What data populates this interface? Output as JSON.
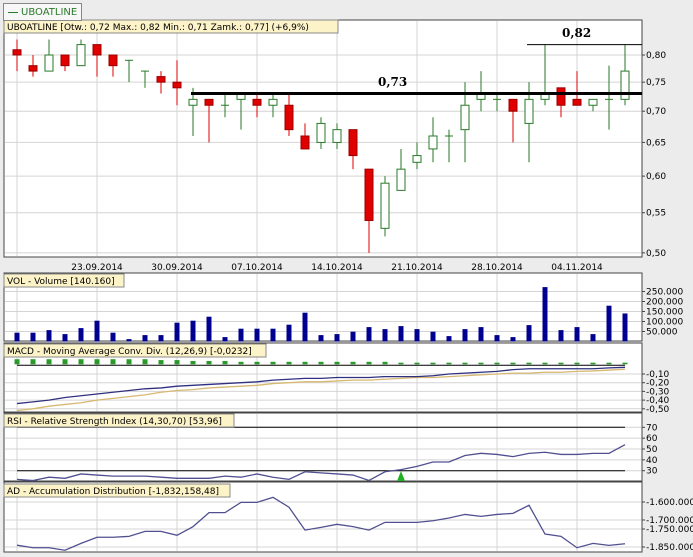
{
  "tab": {
    "label": "UBOATLINE",
    "icon": "line-series-icon",
    "color": "#2a7a2a"
  },
  "colors": {
    "up": "#2a7a2a",
    "down": "#e00000",
    "volume": "#000090",
    "macd": "#303080",
    "signal": "#d8b870",
    "histogram": "#2a9a2a",
    "rsi": "#505090",
    "ad": "#505090",
    "label_bg": "#fdf3c8"
  },
  "chart_data": [
    {
      "type": "candlestick",
      "title": "UBOATLINE [Otw.: 0,72  Max.: 0,82  Min.: 0,71  Zamk.: 0,77] (+6,9%)",
      "y_scale": "log",
      "ylim": [
        0.5,
        0.84
      ],
      "yticks": [
        "0,80",
        "0,75",
        "0,70",
        "0,65",
        "0,60",
        "0,55",
        "0,50"
      ],
      "ytick_values": [
        0.8,
        0.75,
        0.7,
        0.65,
        0.6,
        0.55,
        0.5
      ],
      "xticks": [
        {
          "label": "23.09.2014",
          "index": 5
        },
        {
          "label": "30.09.2014",
          "index": 10
        },
        {
          "label": "07.10.2014",
          "index": 15
        },
        {
          "label": "14.10.2014",
          "index": 20
        },
        {
          "label": "21.10.2014",
          "index": 25
        },
        {
          "label": "28.10.2014",
          "index": 30
        },
        {
          "label": "04.11.2014",
          "index": 35
        }
      ],
      "grid": true,
      "ohlc": [
        [
          0.81,
          0.83,
          0.77,
          0.8
        ],
        [
          0.78,
          0.8,
          0.76,
          0.77
        ],
        [
          0.77,
          0.83,
          0.77,
          0.8
        ],
        [
          0.8,
          0.8,
          0.77,
          0.78
        ],
        [
          0.78,
          0.83,
          0.78,
          0.82
        ],
        [
          0.82,
          0.82,
          0.76,
          0.8
        ],
        [
          0.8,
          0.8,
          0.76,
          0.78
        ],
        [
          0.79,
          0.79,
          0.75,
          0.79
        ],
        [
          0.77,
          0.77,
          0.74,
          0.77
        ],
        [
          0.76,
          0.77,
          0.73,
          0.75
        ],
        [
          0.75,
          0.79,
          0.71,
          0.74
        ],
        [
          0.71,
          0.74,
          0.66,
          0.72
        ],
        [
          0.72,
          0.72,
          0.65,
          0.71
        ],
        [
          0.71,
          0.73,
          0.69,
          0.71
        ],
        [
          0.72,
          0.73,
          0.67,
          0.73
        ],
        [
          0.72,
          0.73,
          0.69,
          0.71
        ],
        [
          0.71,
          0.73,
          0.69,
          0.72
        ],
        [
          0.71,
          0.73,
          0.66,
          0.67
        ],
        [
          0.66,
          0.68,
          0.64,
          0.64
        ],
        [
          0.65,
          0.69,
          0.64,
          0.68
        ],
        [
          0.65,
          0.68,
          0.64,
          0.67
        ],
        [
          0.67,
          0.67,
          0.61,
          0.63
        ],
        [
          0.61,
          0.61,
          0.5,
          0.54
        ],
        [
          0.53,
          0.6,
          0.52,
          0.59
        ],
        [
          0.58,
          0.64,
          0.58,
          0.61
        ],
        [
          0.62,
          0.65,
          0.61,
          0.63
        ],
        [
          0.64,
          0.69,
          0.62,
          0.66
        ],
        [
          0.66,
          0.67,
          0.62,
          0.66
        ],
        [
          0.67,
          0.75,
          0.62,
          0.71
        ],
        [
          0.72,
          0.77,
          0.7,
          0.73
        ],
        [
          0.72,
          0.73,
          0.7,
          0.72
        ],
        [
          0.72,
          0.72,
          0.65,
          0.7
        ],
        [
          0.68,
          0.75,
          0.62,
          0.72
        ],
        [
          0.72,
          0.82,
          0.71,
          0.73
        ],
        [
          0.74,
          0.74,
          0.69,
          0.71
        ],
        [
          0.72,
          0.77,
          0.71,
          0.71
        ],
        [
          0.71,
          0.72,
          0.7,
          0.72
        ],
        [
          0.72,
          0.78,
          0.67,
          0.72
        ],
        [
          0.72,
          0.82,
          0.71,
          0.77
        ]
      ],
      "annotations": [
        {
          "label": "0,73",
          "value": 0.73,
          "from_index": 11,
          "style": "thick"
        },
        {
          "label": "0,82",
          "value": 0.82,
          "from_index": 32,
          "style": "thin"
        }
      ]
    },
    {
      "type": "bar",
      "title": "VOL - Volume [140.160]",
      "ylim": [
        0,
        280000
      ],
      "yticks": [
        "250.000",
        "200.000",
        "150.000",
        "100.000",
        "50.000"
      ],
      "ytick_values": [
        250000,
        200000,
        150000,
        100000,
        50000
      ],
      "values": [
        44000,
        44000,
        57000,
        37000,
        67000,
        104000,
        44000,
        12000,
        32000,
        32000,
        94000,
        104000,
        124000,
        22000,
        64000,
        64000,
        64000,
        84000,
        144000,
        32000,
        37000,
        49000,
        72000,
        62000,
        77000,
        62000,
        49000,
        27000,
        62000,
        72000,
        32000,
        22000,
        82000,
        272000,
        57000,
        72000,
        37000,
        179000,
        140160
      ]
    },
    {
      "type": "line",
      "title": "MACD - Moving Average Conv. Div. (12,26,9) [-0,0232]",
      "yticks": [
        "-0,10",
        "-0,20",
        "-0,30",
        "-0,40",
        "-0,50"
      ],
      "ytick_values": [
        -0.1,
        -0.2,
        -0.3,
        -0.4,
        -0.5
      ],
      "series": [
        {
          "values": [
            -0.44,
            -0.42,
            -0.4,
            -0.37,
            -0.35,
            -0.33,
            -0.31,
            -0.29,
            -0.27,
            -0.26,
            -0.24,
            -0.23,
            -0.22,
            -0.21,
            -0.2,
            -0.19,
            -0.17,
            -0.16,
            -0.15,
            -0.15,
            -0.14,
            -0.14,
            -0.14,
            -0.13,
            -0.13,
            -0.13,
            -0.12,
            -0.1,
            -0.09,
            -0.08,
            -0.07,
            -0.05,
            -0.04,
            -0.04,
            -0.04,
            -0.04,
            -0.04,
            -0.03,
            -0.0232
          ]
        },
        {
          "values": [
            -0.52,
            -0.5,
            -0.47,
            -0.45,
            -0.43,
            -0.4,
            -0.38,
            -0.36,
            -0.34,
            -0.31,
            -0.29,
            -0.28,
            -0.26,
            -0.25,
            -0.24,
            -0.23,
            -0.21,
            -0.2,
            -0.19,
            -0.19,
            -0.18,
            -0.17,
            -0.17,
            -0.16,
            -0.15,
            -0.14,
            -0.14,
            -0.13,
            -0.12,
            -0.11,
            -0.1,
            -0.09,
            -0.09,
            -0.08,
            -0.08,
            -0.07,
            -0.065,
            -0.055,
            -0.045
          ]
        }
      ],
      "histogram": [
        0.07,
        0.07,
        0.07,
        0.07,
        0.07,
        0.07,
        0.07,
        0.07,
        0.07,
        0.06,
        0.06,
        0.05,
        0.05,
        0.05,
        0.04,
        0.04,
        0.04,
        0.04,
        0.04,
        0.04,
        0.04,
        0.04,
        0.04,
        0.04,
        0.03,
        0.03,
        0.03,
        0.03,
        0.03,
        0.03,
        0.03,
        0.03,
        0.03,
        0.03,
        0.03,
        0.03,
        0.03,
        0.03,
        0.03
      ]
    },
    {
      "type": "line",
      "title": "RSI - Relative Strength Index (14,30,70) [53,96]",
      "yticks": [
        "70",
        "60",
        "50",
        "40",
        "30"
      ],
      "ytick_values": [
        70,
        60,
        50,
        40,
        30
      ],
      "levels": [
        70,
        30
      ],
      "values": [
        22,
        21,
        24,
        23,
        27,
        26,
        25,
        25,
        25,
        24,
        23,
        23,
        23,
        25,
        24,
        27,
        24,
        22,
        29,
        28,
        27,
        26,
        21,
        29,
        31,
        34,
        38,
        38,
        44,
        46,
        45,
        43,
        46,
        47,
        45,
        45,
        46,
        46,
        53.96
      ],
      "signals": [
        {
          "type": "buy",
          "index": 24
        }
      ]
    },
    {
      "type": "line",
      "title": "AD - Accumulation Distribution [-1,832,158,48]",
      "yticks": [
        "-1.600.000",
        "-1.700.000",
        "-1.750.000",
        "-1.850.000"
      ],
      "ytick_values": [
        -1600000,
        -1700000,
        -1750000,
        -1850000
      ],
      "values": [
        -1840000,
        -1854000,
        -1854000,
        -1868000,
        -1830000,
        -1796000,
        -1796000,
        -1791000,
        -1763000,
        -1763000,
        -1785000,
        -1737000,
        -1659000,
        -1659000,
        -1602000,
        -1602000,
        -1574000,
        -1629000,
        -1756000,
        -1741000,
        -1724000,
        -1737000,
        -1756000,
        -1713000,
        -1713000,
        -1713000,
        -1704000,
        -1689000,
        -1669000,
        -1680000,
        -1669000,
        -1663000,
        -1618000,
        -1778000,
        -1791000,
        -1854000,
        -1830000,
        -1841000,
        -1832158.48
      ]
    }
  ]
}
